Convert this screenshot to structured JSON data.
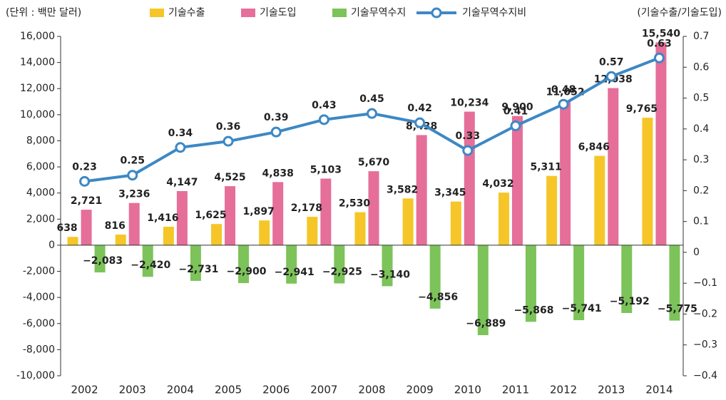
{
  "chart_data": {
    "type": "bar",
    "annotations": [
      "(단위 : 백만 달러)",
      "(기술수출/기술도입)"
    ],
    "categories": [
      "2002",
      "2003",
      "2004",
      "2005",
      "2006",
      "2007",
      "2008",
      "2009",
      "2010",
      "2011",
      "2012",
      "2013",
      "2014"
    ],
    "series": [
      {
        "name": "기술수출",
        "color": "#f6c628",
        "values": [
          638,
          816,
          1416,
          1625,
          1897,
          2178,
          2530,
          3582,
          3345,
          4032,
          5311,
          6846,
          9765
        ],
        "value_labels": [
          "638",
          "816",
          "1,416",
          "1,625",
          "1,897",
          "2,178",
          "2,530",
          "3,582",
          "3,345",
          "4,032",
          "5,311",
          "6,846",
          "9,765"
        ]
      },
      {
        "name": "기술도입",
        "color": "#e56f99",
        "values": [
          2721,
          3236,
          4147,
          4525,
          4838,
          5103,
          5670,
          8438,
          10234,
          9900,
          11052,
          12038,
          15540
        ],
        "value_labels": [
          "2,721",
          "3,236",
          "4,147",
          "4,525",
          "4,838",
          "5,103",
          "5,670",
          "8,438",
          "10,234",
          "9,900",
          "11,052",
          "12,038",
          "15,540"
        ]
      },
      {
        "name": "기술무역수지",
        "color": "#7cc35a",
        "values": [
          -2083,
          -2420,
          -2731,
          -2900,
          -2941,
          -2925,
          -3140,
          -4856,
          -6889,
          -5868,
          -5741,
          -5192,
          -5775
        ],
        "value_labels": [
          "−2,083",
          "−2,420",
          "−2,731",
          "−2,900",
          "−2,941",
          "−2,925",
          "−3,140",
          "−4,856",
          "−6,889",
          "−5,868",
          "−5,741",
          "−5,192",
          "−5,775"
        ]
      },
      {
        "name": "기술무역수지비",
        "color": "#3d88c4",
        "type": "line",
        "axis": "y2",
        "values": [
          0.23,
          0.25,
          0.34,
          0.36,
          0.39,
          0.43,
          0.45,
          0.42,
          0.33,
          0.41,
          0.48,
          0.57,
          0.63
        ]
      }
    ],
    "ylim": [
      -10000,
      16000
    ],
    "yticks": [
      {
        "value": -10000,
        "label": "-10,000"
      },
      {
        "value": -8000,
        "label": "-8,000"
      },
      {
        "value": -6000,
        "label": "-6,000"
      },
      {
        "value": -4000,
        "label": "-4,000"
      },
      {
        "value": -2000,
        "label": "-2,000"
      },
      0,
      {
        "value": 2000,
        "label": "2,000"
      },
      {
        "value": 4000,
        "label": "4,000"
      },
      {
        "value": 6000,
        "label": "6,000"
      },
      {
        "value": 8000,
        "label": "8,000"
      },
      {
        "value": 10000,
        "label": "10,000"
      },
      {
        "value": 12000,
        "label": "12,000"
      },
      {
        "value": 14000,
        "label": "14,000"
      },
      {
        "value": 16000,
        "label": "16,000"
      }
    ],
    "y2lim": [
      -0.4,
      0.7
    ],
    "y2ticks": [
      {
        "value": -0.4,
        "label": "−0.4"
      },
      {
        "value": -0.3,
        "label": "−0.3"
      },
      {
        "value": -0.2,
        "label": "−0.2"
      },
      {
        "value": -0.1,
        "label": "−0.1"
      },
      0,
      0.1,
      0.2,
      0.3,
      0.4,
      0.5,
      0.6,
      0.7
    ],
    "grid": false,
    "legend": "top"
  }
}
